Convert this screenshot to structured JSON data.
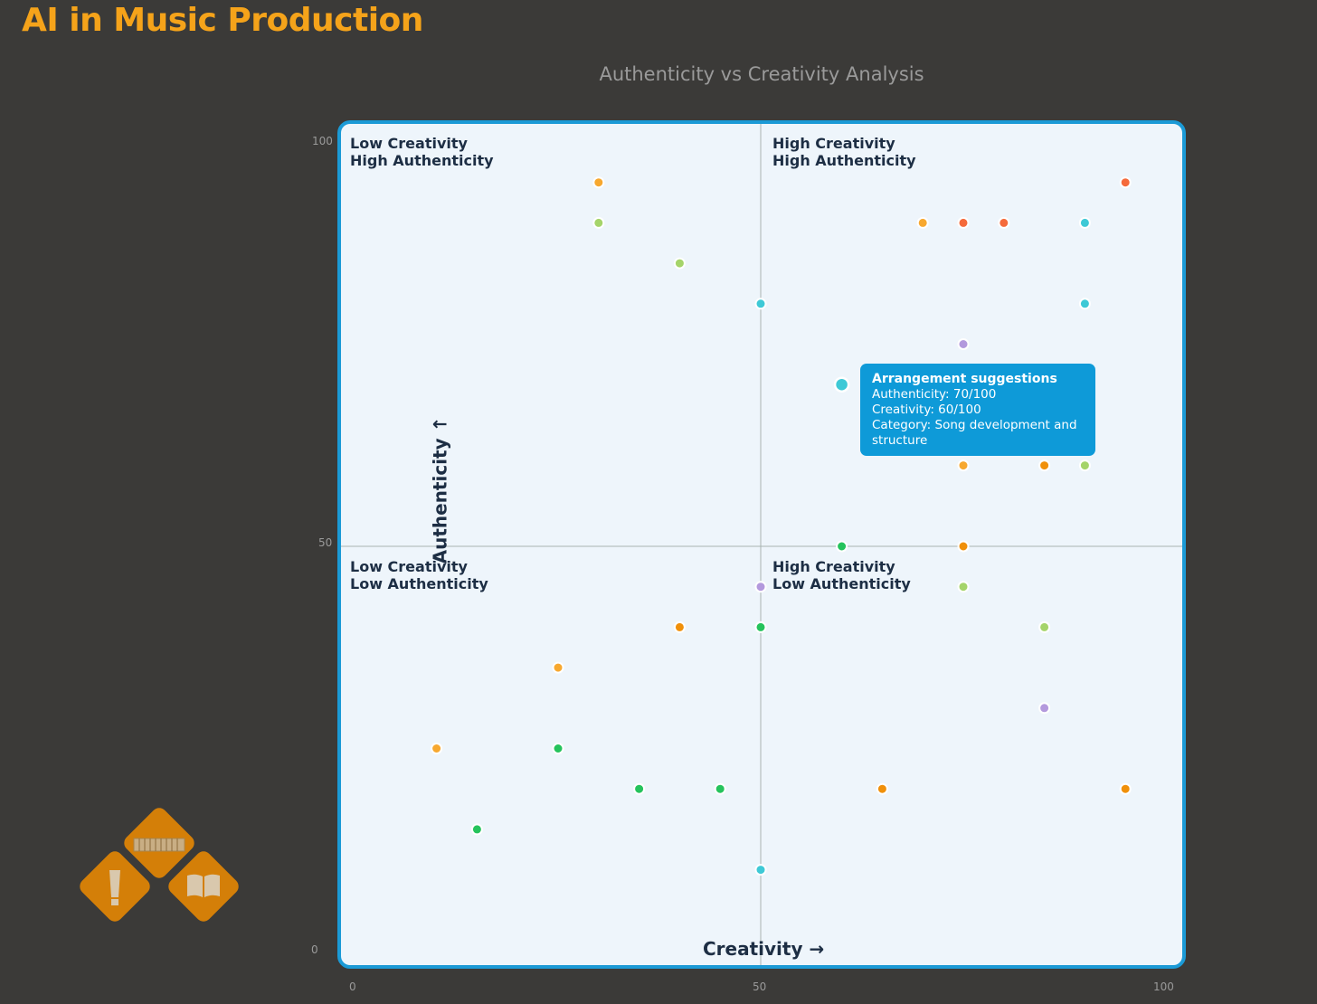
{
  "page": {
    "title": "AI in Music Production"
  },
  "colors": {
    "background": "#3b3a38",
    "title": "#f5a31a",
    "frame": "#1b9ad6",
    "plot_bg": "#eef5fb",
    "tooltip_bg": "#0e9ad8",
    "logo": "#d47f08"
  },
  "chart_data": {
    "type": "scatter",
    "title": "Authenticity vs Creativity Analysis",
    "xlabel": "Creativity →",
    "ylabel": "Authenticity ↑",
    "xlim": [
      0,
      100
    ],
    "ylim": [
      0,
      100
    ],
    "x_ticks": [
      "0",
      "50",
      "100"
    ],
    "y_ticks": [
      "0",
      "50",
      "100"
    ],
    "quadrant_lines": {
      "x": 50,
      "y": 50
    },
    "quadrants": {
      "top_left": "Low Creativity\nHigh Authenticity",
      "top_right": "High Creativity\nHigh Authenticity",
      "bottom_left": "Low Creativity\nLow Authenticity",
      "bottom_right": "High Creativity\nLow Authenticity"
    },
    "points": [
      {
        "x": 30,
        "y": 95,
        "color": "#f7a82f"
      },
      {
        "x": 30,
        "y": 90,
        "color": "#a5d46a"
      },
      {
        "x": 40,
        "y": 85,
        "color": "#a5d46a"
      },
      {
        "x": 50,
        "y": 80,
        "color": "#3ec9d6"
      },
      {
        "x": 70,
        "y": 90,
        "color": "#f7a82f"
      },
      {
        "x": 75,
        "y": 90,
        "color": "#f56a3b"
      },
      {
        "x": 80,
        "y": 90,
        "color": "#f56a3b"
      },
      {
        "x": 90,
        "y": 90,
        "color": "#3ec9d6"
      },
      {
        "x": 95,
        "y": 95,
        "color": "#f56a3b"
      },
      {
        "x": 90,
        "y": 80,
        "color": "#3ec9d6"
      },
      {
        "x": 75,
        "y": 75,
        "color": "#b399dd"
      },
      {
        "x": 60,
        "y": 70,
        "color": "#3ec9d6",
        "highlight": true
      },
      {
        "x": 75,
        "y": 60,
        "color": "#f7a82f"
      },
      {
        "x": 85,
        "y": 60,
        "color": "#f0900a"
      },
      {
        "x": 90,
        "y": 60,
        "color": "#a5d46a"
      },
      {
        "x": 60,
        "y": 50,
        "color": "#25c35c"
      },
      {
        "x": 75,
        "y": 50,
        "color": "#f0900a"
      },
      {
        "x": 50,
        "y": 45,
        "color": "#b399dd"
      },
      {
        "x": 75,
        "y": 45,
        "color": "#a5d46a"
      },
      {
        "x": 40,
        "y": 40,
        "color": "#f0900a"
      },
      {
        "x": 50,
        "y": 40,
        "color": "#25c35c"
      },
      {
        "x": 85,
        "y": 40,
        "color": "#a5d46a"
      },
      {
        "x": 25,
        "y": 35,
        "color": "#f7a82f"
      },
      {
        "x": 85,
        "y": 30,
        "color": "#b399dd"
      },
      {
        "x": 10,
        "y": 25,
        "color": "#f7a82f"
      },
      {
        "x": 25,
        "y": 25,
        "color": "#25c35c"
      },
      {
        "x": 35,
        "y": 20,
        "color": "#25c35c"
      },
      {
        "x": 45,
        "y": 20,
        "color": "#25c35c"
      },
      {
        "x": 65,
        "y": 20,
        "color": "#f0900a"
      },
      {
        "x": 95,
        "y": 20,
        "color": "#f0900a"
      },
      {
        "x": 15,
        "y": 15,
        "color": "#25c35c"
      },
      {
        "x": 50,
        "y": 10,
        "color": "#3ec9d6"
      }
    ],
    "tooltip": {
      "title": "Arrangement suggestions",
      "authenticity": "Authenticity: 70/100",
      "creativity": "Creativity: 60/100",
      "category": "Category: Song development and structure"
    }
  },
  "logo": {
    "icons": [
      "keyboard-icon",
      "paint-tube-icon",
      "open-book-icon"
    ]
  }
}
